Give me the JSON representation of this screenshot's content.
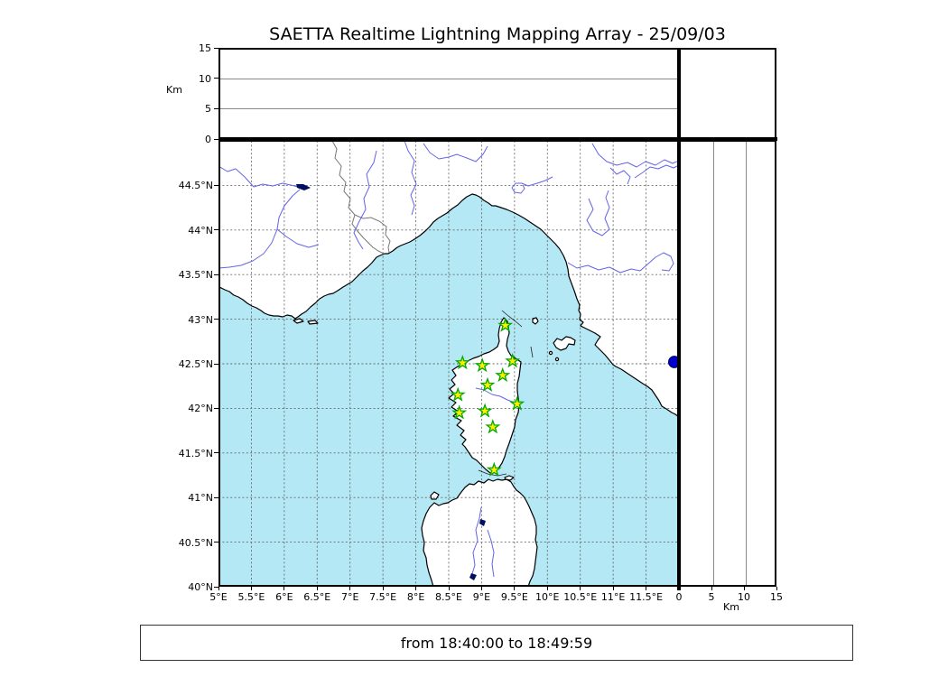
{
  "title": "SAETTA Realtime Lightning Mapping Array - 25/09/03",
  "footer": {
    "time_range": "from 18:40:00 to 18:49:59"
  },
  "top_panel": {
    "axis_unit": "Km",
    "ticks": [
      "0",
      "5",
      "10",
      "15"
    ],
    "max_km": 15
  },
  "right_panel": {
    "axis_unit": "Km",
    "ticks": [
      "0",
      "5",
      "10",
      "15"
    ],
    "max_km": 15
  },
  "map": {
    "lon_range": [
      5,
      12
    ],
    "lat_range": [
      40,
      45
    ],
    "grid_step_deg": 0.5,
    "lon_tick_labels": [
      "5°E",
      "5.5°E",
      "6°E",
      "6.5°E",
      "7°E",
      "7.5°E",
      "8°E",
      "8.5°E",
      "9°E",
      "9.5°E",
      "10°E",
      "10.5°E",
      "11°E",
      "11.5°E"
    ],
    "lat_tick_labels": [
      "40°N",
      "40.5°N",
      "41°N",
      "41.5°N",
      "42°N",
      "42.5°N",
      "43°N",
      "43.5°N",
      "44°N",
      "44.5°N"
    ],
    "stations": [
      {
        "lat": 42.93,
        "lon": 9.36
      },
      {
        "lat": 42.51,
        "lon": 8.71
      },
      {
        "lat": 42.48,
        "lon": 9.01
      },
      {
        "lat": 42.53,
        "lon": 9.47
      },
      {
        "lat": 42.37,
        "lon": 9.32
      },
      {
        "lat": 42.26,
        "lon": 9.09
      },
      {
        "lat": 42.15,
        "lon": 8.64
      },
      {
        "lat": 42.05,
        "lon": 9.54
      },
      {
        "lat": 41.95,
        "lon": 8.66
      },
      {
        "lat": 41.97,
        "lon": 9.05
      },
      {
        "lat": 41.79,
        "lon": 9.17
      },
      {
        "lat": 41.31,
        "lon": 9.19
      }
    ],
    "lake_dot": {
      "lat": 42.52,
      "lon": 11.93
    }
  },
  "colors": {
    "sea": "#B5E8F5",
    "land": "#FFFFFF",
    "coast": "#000000",
    "river": "#6464E8",
    "lake": "#001060",
    "grid": "#555555",
    "admin_border": "#777777",
    "station_fill": "#FFEC00",
    "station_stroke": "#00AA00",
    "lake_dot_fill": "#0000CC"
  }
}
